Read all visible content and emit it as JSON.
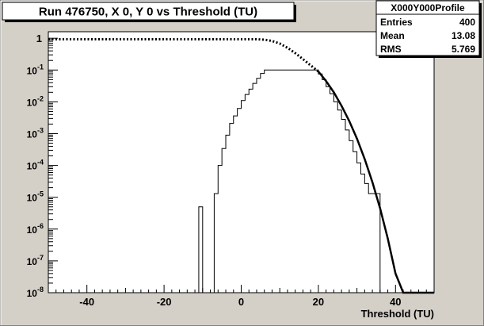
{
  "chart_data": {
    "type": "line",
    "title": "Run 476750, X 0, Y 0 vs Threshold (TU)",
    "xlabel": "Threshold (TU)",
    "ylabel": "",
    "xlim": [
      -50,
      50
    ],
    "ylim": [
      1e-08,
      1.6
    ],
    "yscale": "log",
    "grid": false,
    "x_ticks": [
      -40,
      -20,
      0,
      20,
      40
    ],
    "x_tick_labels": [
      "-40",
      "-20",
      "0",
      "20",
      "40"
    ],
    "y_ticks": [
      1,
      0.1,
      0.01,
      0.001,
      0.0001,
      1e-05,
      1e-06,
      1e-07,
      1e-08
    ],
    "y_tick_labels": [
      {
        "base": "1",
        "exp": ""
      },
      {
        "base": "10",
        "exp": "-1"
      },
      {
        "base": "10",
        "exp": "-2"
      },
      {
        "base": "10",
        "exp": "-3"
      },
      {
        "base": "10",
        "exp": "-4"
      },
      {
        "base": "10",
        "exp": "-5"
      },
      {
        "base": "10",
        "exp": "-6"
      },
      {
        "base": "10",
        "exp": "-7"
      },
      {
        "base": "",
        "exp": ""
      }
    ],
    "y_bottom_label": {
      "base": "10",
      "exp": "-8"
    },
    "stats_box": {
      "title": "X000Y000Profile",
      "rows": [
        {
          "label": "Entries",
          "value": "400"
        },
        {
          "label": "Mean",
          "value": "13.08"
        },
        {
          "label": "RMS",
          "value": "5.769"
        }
      ]
    },
    "series": [
      {
        "style": "histogram",
        "color": "#000000",
        "bins": [
          {
            "x0": -11,
            "x1": -10,
            "y": 5e-06
          },
          {
            "x0": -7,
            "x1": -6,
            "y": 1.3e-05
          },
          {
            "x0": -6,
            "x1": -5,
            "y": 0.0001
          },
          {
            "x0": -5,
            "x1": -4,
            "y": 0.00034
          },
          {
            "x0": -4,
            "x1": -3,
            "y": 0.0009
          },
          {
            "x0": -3,
            "x1": -2,
            "y": 0.0021
          },
          {
            "x0": -2,
            "x1": -1,
            "y": 0.0036
          },
          {
            "x0": -1,
            "x1": 0,
            "y": 0.0062
          },
          {
            "x0": 0,
            "x1": 1,
            "y": 0.011
          },
          {
            "x0": 1,
            "x1": 2,
            "y": 0.017
          },
          {
            "x0": 2,
            "x1": 3,
            "y": 0.025
          },
          {
            "x0": 3,
            "x1": 4,
            "y": 0.038
          },
          {
            "x0": 4,
            "x1": 5,
            "y": 0.055
          },
          {
            "x0": 5,
            "x1": 6,
            "y": 0.078
          },
          {
            "x0": 6,
            "x1": 20,
            "y": 0.1
          },
          {
            "x0": 20,
            "x1": 21,
            "y": 0.075
          },
          {
            "x0": 21,
            "x1": 22,
            "y": 0.05
          },
          {
            "x0": 22,
            "x1": 23,
            "y": 0.03
          },
          {
            "x0": 23,
            "x1": 24,
            "y": 0.018
          },
          {
            "x0": 24,
            "x1": 25,
            "y": 0.01
          },
          {
            "x0": 25,
            "x1": 26,
            "y": 0.0055
          },
          {
            "x0": 26,
            "x1": 27,
            "y": 0.0028
          },
          {
            "x0": 27,
            "x1": 28,
            "y": 0.0013
          },
          {
            "x0": 28,
            "x1": 29,
            "y": 0.0006
          },
          {
            "x0": 29,
            "x1": 30,
            "y": 0.00027
          },
          {
            "x0": 30,
            "x1": 31,
            "y": 0.00012
          },
          {
            "x0": 31,
            "x1": 32,
            "y": 5.4e-05
          },
          {
            "x0": 32,
            "x1": 33,
            "y": 2.7e-05
          },
          {
            "x0": 33,
            "x1": 36,
            "y": 1.3e-05
          },
          {
            "x0": 44,
            "x1": 50,
            "y": 1e-08
          }
        ]
      },
      {
        "style": "dotted",
        "color": "#000000",
        "x": [
          -50,
          -40,
          -30,
          -20,
          -10,
          0,
          4,
          6,
          8,
          10,
          12,
          14,
          16,
          18,
          20
        ],
        "y": [
          0.93,
          0.93,
          0.93,
          0.93,
          0.93,
          0.93,
          0.93,
          0.9,
          0.82,
          0.68,
          0.5,
          0.34,
          0.22,
          0.14,
          0.09
        ]
      },
      {
        "style": "solid",
        "color": "#000000",
        "x": [
          20,
          22,
          24,
          26,
          28,
          30,
          32,
          34,
          36,
          38,
          40,
          42,
          44,
          50
        ],
        "y": [
          0.09,
          0.045,
          0.02,
          0.0075,
          0.0025,
          0.0007,
          0.00016,
          3e-05,
          4.5e-06,
          5e-07,
          4e-08,
          1e-08,
          1e-08,
          1e-08
        ]
      }
    ]
  }
}
